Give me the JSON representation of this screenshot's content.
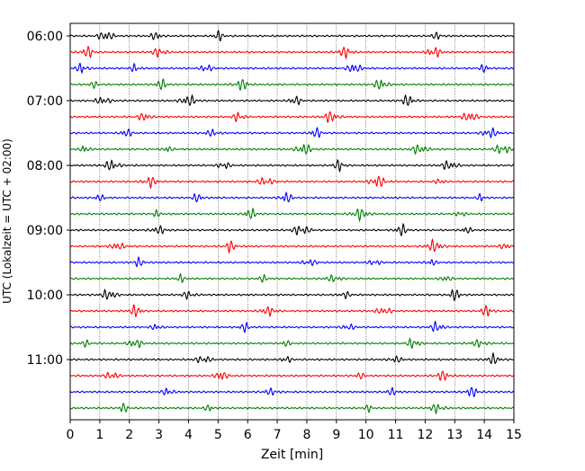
{
  "chart_data": {
    "type": "line",
    "title": "",
    "xlabel": "Zeit  [min]",
    "ylabel": "UTC (Lokalzeit = UTC + 02:00)",
    "xlim": [
      0,
      15
    ],
    "x_ticks": [
      "0",
      "1",
      "2",
      "3",
      "4",
      "5",
      "6",
      "7",
      "8",
      "9",
      "10",
      "11",
      "12",
      "13",
      "14",
      "15"
    ],
    "y_tick_labels": [
      "06:00",
      "07:00",
      "08:00",
      "09:00",
      "10:00",
      "11:00"
    ],
    "grid": "vertical dotted lines at each minute",
    "legend": "none",
    "trace_start_utc": "06:00",
    "trace_interval_min": 15,
    "trace_count": 24,
    "trace_colors": [
      "#000000",
      "#ff0000",
      "#0000ff",
      "#007f00"
    ],
    "series": [
      {
        "start": "06:00",
        "color": "#000000",
        "bursts": [
          1.2,
          2.9,
          5.0,
          12.4
        ]
      },
      {
        "start": "06:15",
        "color": "#ff0000",
        "bursts": [
          0.6,
          3.0,
          9.3,
          12.3
        ]
      },
      {
        "start": "06:30",
        "color": "#0000ff",
        "bursts": [
          0.4,
          2.2,
          4.6,
          9.6,
          14.0
        ]
      },
      {
        "start": "06:45",
        "color": "#007f00",
        "bursts": [
          0.8,
          3.1,
          5.8,
          10.5
        ]
      },
      {
        "start": "07:00",
        "color": "#000000",
        "bursts": [
          1.1,
          4.0,
          7.6,
          11.4
        ]
      },
      {
        "start": "07:15",
        "color": "#ff0000",
        "bursts": [
          2.5,
          5.7,
          8.8,
          13.5
        ]
      },
      {
        "start": "07:30",
        "color": "#0000ff",
        "bursts": [
          1.9,
          4.8,
          8.3,
          14.2
        ]
      },
      {
        "start": "07:45",
        "color": "#007f00",
        "bursts": [
          0.5,
          3.3,
          7.9,
          11.8,
          14.6
        ]
      },
      {
        "start": "08:00",
        "color": "#000000",
        "bursts": [
          1.4,
          5.2,
          9.1,
          12.8
        ]
      },
      {
        "start": "08:15",
        "color": "#ff0000",
        "bursts": [
          2.7,
          6.6,
          10.4,
          12.5
        ]
      },
      {
        "start": "08:30",
        "color": "#0000ff",
        "bursts": [
          1.0,
          4.3,
          7.3,
          13.9
        ]
      },
      {
        "start": "08:45",
        "color": "#007f00",
        "bursts": [
          2.9,
          6.1,
          9.8,
          13.2
        ]
      },
      {
        "start": "09:00",
        "color": "#000000",
        "bursts": [
          3.0,
          7.8,
          11.2,
          13.4
        ]
      },
      {
        "start": "09:15",
        "color": "#ff0000",
        "bursts": [
          1.6,
          5.4,
          12.3,
          14.7
        ]
      },
      {
        "start": "09:30",
        "color": "#0000ff",
        "bursts": [
          2.3,
          8.1,
          10.3,
          12.2
        ]
      },
      {
        "start": "09:45",
        "color": "#007f00",
        "bursts": [
          3.7,
          6.5,
          8.9,
          12.7
        ]
      },
      {
        "start": "10:00",
        "color": "#000000",
        "bursts": [
          1.3,
          4.0,
          9.3,
          13.0
        ]
      },
      {
        "start": "10:15",
        "color": "#ff0000",
        "bursts": [
          2.2,
          6.7,
          10.6,
          14.1
        ]
      },
      {
        "start": "10:30",
        "color": "#0000ff",
        "bursts": [
          2.9,
          5.9,
          9.4,
          12.4
        ]
      },
      {
        "start": "10:45",
        "color": "#007f00",
        "bursts": [
          0.5,
          2.2,
          7.3,
          11.6,
          13.8
        ]
      },
      {
        "start": "11:00",
        "color": "#000000",
        "bursts": [
          4.5,
          7.3,
          11.0,
          14.3
        ]
      },
      {
        "start": "11:15",
        "color": "#ff0000",
        "bursts": [
          1.4,
          5.1,
          9.8,
          12.6
        ]
      },
      {
        "start": "11:30",
        "color": "#0000ff",
        "bursts": [
          3.3,
          6.8,
          10.9,
          13.6
        ]
      },
      {
        "start": "11:45",
        "color": "#007f00",
        "bursts": [
          1.8,
          4.7,
          10.1,
          12.4
        ]
      }
    ]
  }
}
